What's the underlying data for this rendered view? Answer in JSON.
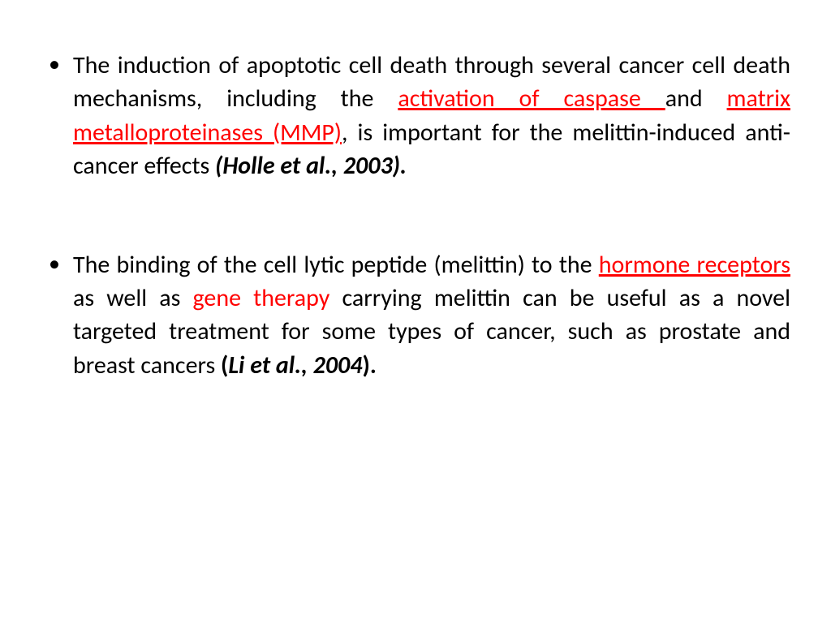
{
  "colors": {
    "text": "#000000",
    "highlight": "#ff0000",
    "background": "#ffffff"
  },
  "typography": {
    "font_family": "Calibri",
    "font_size_pt": 30,
    "line_height": 1.38,
    "align": "justify"
  },
  "bullets": [
    {
      "s1": "The induction of apoptotic cell death through several cancer cell death mechanisms, including the ",
      "h1": "activation of caspase ",
      "s2": "and ",
      "h2": "matrix metalloproteinases (MMP)",
      "s3": ", is important for the melittin-induced anti-cancer effects ",
      "cite": "(Holle et al., 2003)."
    },
    {
      "s1": "The binding of the cell lytic peptide (melittin) to the ",
      "h1": "hormone receptors",
      "s2": " as well as ",
      "h2": "gene therapy",
      "s3": " carrying melittin can be useful as a novel targeted treatment for some types of cancer, such as prostate and breast cancers ",
      "open": "(",
      "cite": "Li et al., 2004",
      "close": ")."
    }
  ]
}
